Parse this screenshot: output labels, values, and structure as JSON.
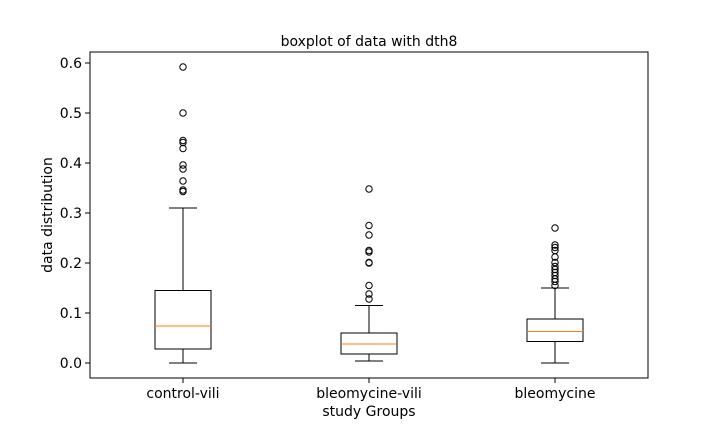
{
  "chart_data": {
    "type": "boxplot",
    "title": "boxplot of data with dth8",
    "xlabel": "study Groups",
    "ylabel": "data distribution",
    "ylim": [
      -0.03,
      0.622
    ],
    "yticks": [
      0.0,
      0.1,
      0.2,
      0.3,
      0.4,
      0.5,
      0.6
    ],
    "ytick_labels": [
      "0.0",
      "0.1",
      "0.2",
      "0.3",
      "0.4",
      "0.5",
      "0.6"
    ],
    "grid": false,
    "colors": {
      "box": "#000000",
      "median": "#ff7f0e",
      "flier": "#000000"
    },
    "categories": [
      "control-vili",
      "bleomycine-vili",
      "bleomycine"
    ],
    "boxes": [
      {
        "category": "control-vili",
        "whisker_low": 0.0,
        "q1": 0.028,
        "median": 0.074,
        "q3": 0.145,
        "whisker_high": 0.31,
        "outliers": [
          0.343,
          0.346,
          0.364,
          0.388,
          0.396,
          0.429,
          0.441,
          0.445,
          0.5,
          0.592
        ]
      },
      {
        "category": "bleomycine-vili",
        "whisker_low": 0.004,
        "q1": 0.018,
        "median": 0.038,
        "q3": 0.06,
        "whisker_high": 0.115,
        "outliers": [
          0.128,
          0.138,
          0.155,
          0.2,
          0.201,
          0.222,
          0.225,
          0.256,
          0.275,
          0.348
        ]
      },
      {
        "category": "bleomycine",
        "whisker_low": 0.0,
        "q1": 0.043,
        "median": 0.063,
        "q3": 0.088,
        "whisker_high": 0.15,
        "outliers": [
          0.155,
          0.163,
          0.168,
          0.175,
          0.181,
          0.187,
          0.193,
          0.201,
          0.212,
          0.225,
          0.231,
          0.236,
          0.27
        ]
      }
    ]
  }
}
